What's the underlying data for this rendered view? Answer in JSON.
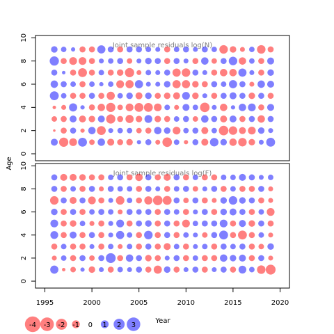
{
  "chart_data": {
    "type": "scatter",
    "xlabel": "Year",
    "ylabel": "Age",
    "xlim": [
      1994,
      2021
    ],
    "ylim": [
      -0.6,
      10.2
    ],
    "x_ticks": [
      1995,
      2000,
      2005,
      2010,
      2015,
      2020
    ],
    "y_ticks": [
      0,
      2,
      4,
      6,
      8,
      10
    ],
    "years": [
      1996,
      1997,
      1998,
      1999,
      2000,
      2001,
      2002,
      2003,
      2004,
      2005,
      2006,
      2007,
      2008,
      2009,
      2010,
      2011,
      2012,
      2013,
      2014,
      2015,
      2016,
      2017,
      2018,
      2019
    ],
    "ages": [
      1,
      2,
      3,
      4,
      5,
      6,
      7,
      8,
      9
    ],
    "colors": {
      "negative": "#FF0000",
      "positive": "#0000FF",
      "alpha": 0.5
    },
    "legend": {
      "values": [
        -4,
        -3,
        -2,
        -1,
        0,
        1,
        2,
        3
      ],
      "labels": [
        "-4",
        "-3",
        "-2",
        "-1",
        "0",
        "1",
        "2",
        "3"
      ],
      "placement": "bottom-left"
    },
    "panels": [
      {
        "title": "Joint sample residuals log(N)",
        "residuals": [
          [
            0.8,
            -1.4,
            -1.0,
            1.3,
            -0.5,
            0.9,
            -0.8,
            -0.6,
            -0.7,
            0.3,
            0.6,
            -0.4,
            -1.5,
            0.5,
            -0.3,
            0.6,
            -0.8,
            1.2,
            0.7,
            -0.9,
            -1.2,
            -0.7,
            0.4,
            1.3
          ],
          [
            -0.1,
            -0.6,
            0.6,
            -0.3,
            0.9,
            -1.3,
            0.4,
            0.5,
            0.5,
            -0.5,
            -0.6,
            0.9,
            0.7,
            -1.0,
            0.5,
            0.6,
            -0.8,
            0.5,
            -1.5,
            -1.2,
            -0.8,
            -1.0,
            0.7,
            0.4
          ],
          [
            -0.5,
            -0.6,
            0.8,
            -0.8,
            -0.7,
            0.8,
            -1.4,
            -0.6,
            -1.1,
            -0.7,
            1.0,
            -0.7,
            -0.6,
            0.5,
            0.6,
            -0.5,
            0.9,
            0.6,
            -0.8,
            0.8,
            -0.6,
            0.6,
            -0.9,
            0.6
          ],
          [
            -0.2,
            -0.4,
            1.1,
            0.3,
            -0.6,
            -0.9,
            -1.4,
            -0.5,
            -1.0,
            -1.3,
            -1.3,
            -1.0,
            0.5,
            -0.4,
            0.8,
            0.5,
            -1.5,
            0.4,
            -0.9,
            0.3,
            0.9,
            1.0,
            -0.6,
            0.8
          ],
          [
            1.3,
            0.5,
            -0.6,
            -0.6,
            0.6,
            -0.6,
            -1.1,
            0.5,
            0.7,
            -0.8,
            0.7,
            -0.6,
            -0.7,
            -0.8,
            1.0,
            -0.7,
            0.4,
            -0.6,
            0.6,
            0.8,
            0.6,
            -0.7,
            0.6,
            -0.6
          ],
          [
            0.9,
            0.6,
            0.5,
            -0.6,
            0.5,
            0.3,
            0.5,
            -1.0,
            -1.1,
            1.1,
            0.4,
            0.4,
            0.7,
            -1.1,
            -1.1,
            -0.7,
            -0.6,
            0.6,
            0.5,
            1.1,
            0.6,
            -0.4,
            0.9,
            0.8
          ],
          [
            0.6,
            0.2,
            -0.6,
            -1.3,
            -0.6,
            0.5,
            -0.6,
            -0.7,
            -1.4,
            -0.4,
            0.5,
            0.4,
            0.6,
            -1.1,
            -1.2,
            0.6,
            0.4,
            -0.6,
            -0.9,
            -0.9,
            1.1,
            0.4,
            -0.6,
            0.7
          ],
          [
            1.4,
            -0.6,
            -1.0,
            -1.0,
            -0.6,
            0.4,
            0.5,
            0.6,
            -0.5,
            0.4,
            0.7,
            0.6,
            -0.6,
            0.6,
            0.4,
            -0.6,
            0.9,
            -0.5,
            0.6,
            1.2,
            -0.9,
            0.5,
            -0.6,
            0.8
          ],
          [
            0.7,
            0.5,
            0.3,
            -0.6,
            -0.6,
            1.1,
            0.6,
            -0.6,
            0.6,
            0.6,
            0.5,
            0.4,
            -0.6,
            0.5,
            0.6,
            0.4,
            0.6,
            0.5,
            -1.2,
            -0.7,
            -0.4,
            0.5,
            -1.2,
            -0.6
          ]
        ]
      },
      {
        "title": "Joint sample residuals log(F)",
        "residuals": [
          [
            1.1,
            -0.2,
            -0.5,
            0.3,
            -0.7,
            0.4,
            -0.6,
            0.5,
            0.4,
            0.6,
            -0.6,
            -1.1,
            0.7,
            -0.6,
            0.4,
            0.6,
            -0.6,
            0.4,
            0.6,
            -0.6,
            1.0,
            0.5,
            -1.2,
            -1.6
          ],
          [
            -0.4,
            0.5,
            -0.6,
            0.6,
            -0.5,
            0.6,
            1.6,
            -0.6,
            0.9,
            0.6,
            -0.7,
            -0.6,
            0.4,
            0.6,
            -0.6,
            0.5,
            -0.6,
            -0.6,
            0.9,
            0.7,
            0.8,
            -0.6,
            0.6,
            -0.4
          ],
          [
            -0.6,
            0.5,
            -0.6,
            -0.6,
            0.4,
            -0.6,
            0.5,
            -0.4,
            0.5,
            -0.6,
            0.6,
            -0.6,
            -0.8,
            0.5,
            -0.6,
            0.4,
            0.5,
            -0.6,
            0.6,
            0.5,
            0.6,
            -0.6,
            -0.5,
            0.7
          ],
          [
            1.0,
            -0.6,
            0.8,
            -0.6,
            0.6,
            -0.6,
            0.4,
            1.1,
            0.5,
            -0.6,
            1.2,
            -0.6,
            0.6,
            -0.6,
            0.5,
            0.4,
            -0.5,
            0.6,
            1.3,
            -0.6,
            -1.3,
            -0.6,
            0.5,
            -0.4
          ],
          [
            1.0,
            -0.6,
            -0.7,
            0.5,
            -0.4,
            -0.6,
            0.4,
            1.0,
            -0.6,
            0.6,
            0.7,
            -0.6,
            0.6,
            -0.6,
            -1.0,
            0.5,
            0.6,
            0.6,
            1.0,
            -0.6,
            0.8,
            -0.7,
            0.6,
            -0.6
          ],
          [
            0.7,
            -0.6,
            0.6,
            -0.6,
            0.5,
            0.6,
            0.5,
            -0.4,
            0.6,
            0.5,
            0.6,
            -0.6,
            0.6,
            0.5,
            -0.6,
            0.4,
            0.6,
            -0.6,
            0.7,
            0.8,
            0.6,
            -0.6,
            0.5,
            -1.0
          ],
          [
            -1.2,
            0.6,
            -0.8,
            0.6,
            -1.0,
            -0.6,
            0.4,
            -1.2,
            0.5,
            -0.6,
            -1.1,
            -1.5,
            -1.3,
            0.6,
            -0.5,
            0.6,
            -0.6,
            -0.4,
            0.7,
            1.2,
            0.7,
            0.6,
            -0.6,
            -0.4
          ],
          [
            0.6,
            -0.6,
            0.5,
            -0.6,
            0.6,
            -0.4,
            0.6,
            0.5,
            0.5,
            -0.6,
            0.6,
            0.4,
            -0.6,
            0.5,
            0.6,
            -0.5,
            0.4,
            0.6,
            -0.6,
            0.5,
            -0.6,
            -0.6,
            0.6,
            -0.4
          ],
          [
            0.6,
            -0.8,
            -0.8,
            -0.7,
            -0.6,
            -0.6,
            0.5,
            0.6,
            -0.6,
            -0.9,
            0.6,
            -0.6,
            -0.8,
            0.6,
            -0.6,
            0.5,
            -0.6,
            -0.6,
            0.5,
            0.5,
            0.8,
            0.6,
            0.4,
            0.5
          ]
        ]
      }
    ]
  }
}
